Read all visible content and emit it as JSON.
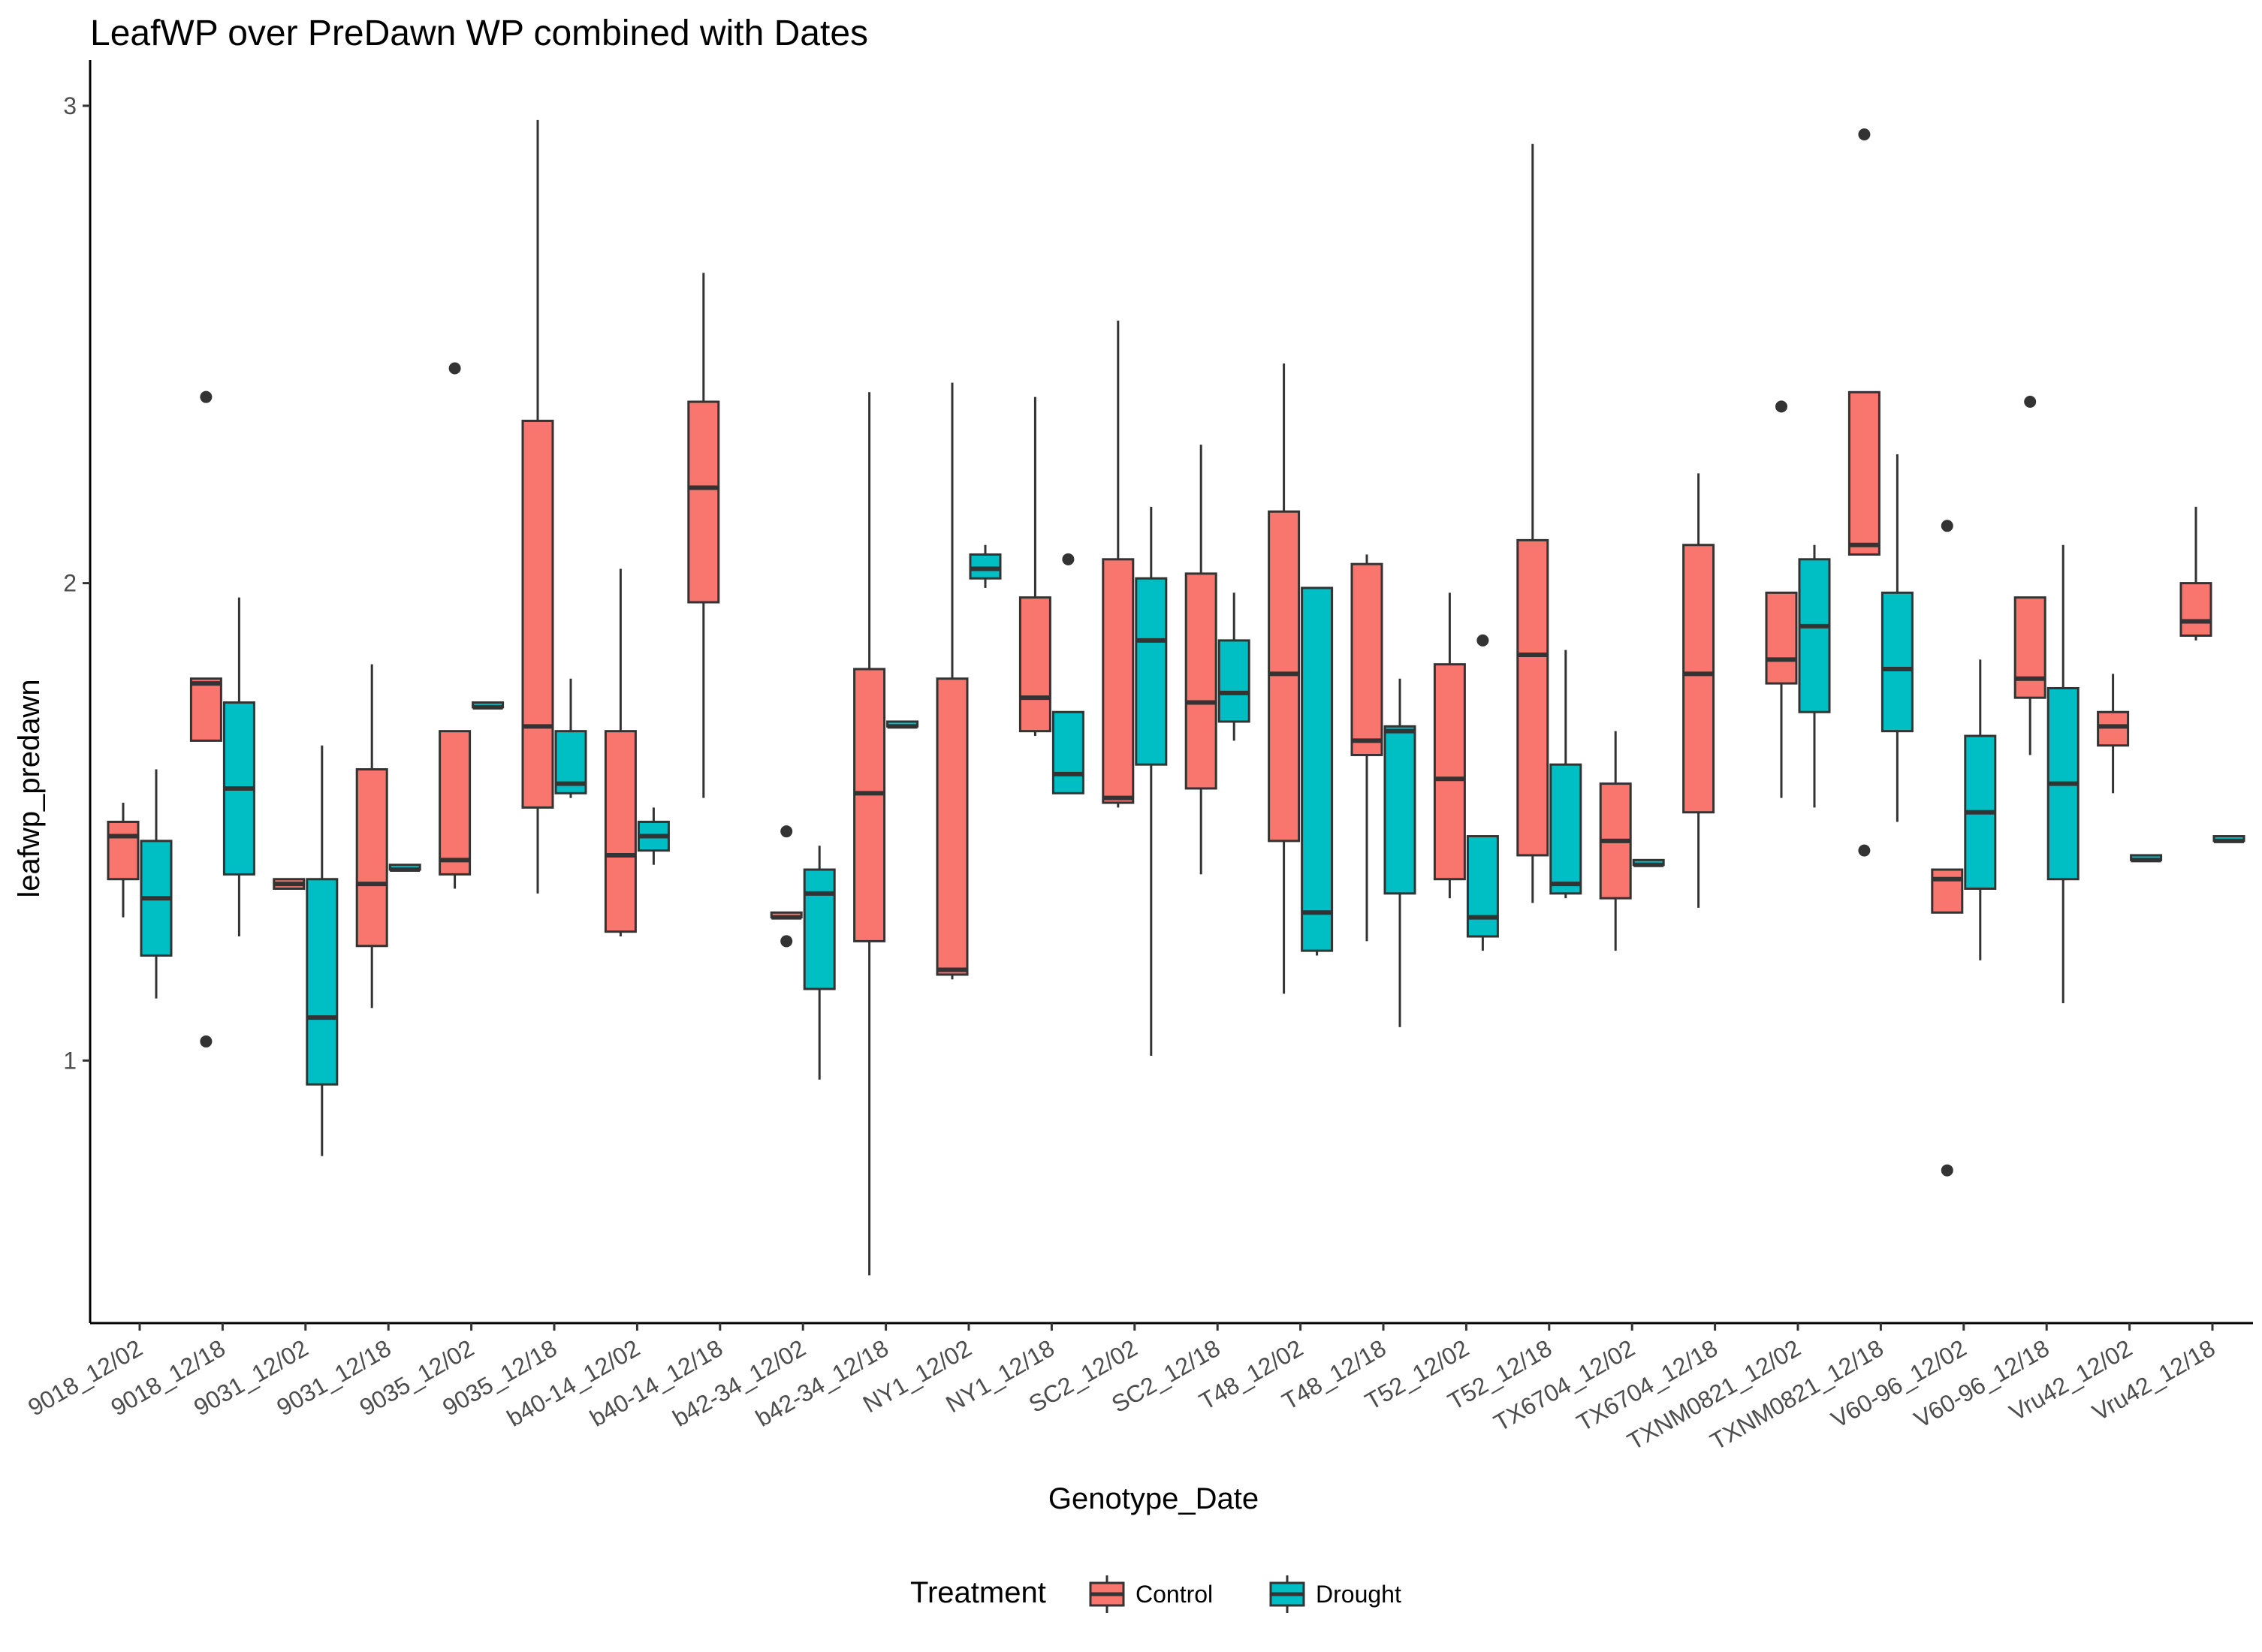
{
  "chart_data": {
    "type": "box",
    "title": "LeafWP over PreDawn WP combined with Dates",
    "xlabel": "Genotype_Date",
    "ylabel": "leafwp_predawn",
    "ylim": [
      0.45,
      3.08
    ],
    "yticks": [
      "1",
      "2",
      "3"
    ],
    "grid": false,
    "legend": {
      "title": "Treatment",
      "placement": "bottom",
      "entries": [
        {
          "name": "Control",
          "color": "#F8766D"
        },
        {
          "name": "Drought",
          "color": "#00BFC4"
        }
      ]
    },
    "categories": [
      "9018_12/02",
      "9018_12/18",
      "9031_12/02",
      "9031_12/18",
      "9035_12/02",
      "9035_12/18",
      "b40-14_12/02",
      "b40-14_12/18",
      "b42-34_12/02",
      "b42-34_12/18",
      "NY1_12/02",
      "NY1_12/18",
      "SC2_12/02",
      "SC2_12/18",
      "T48_12/02",
      "T48_12/18",
      "T52_12/02",
      "T52_12/18",
      "TX6704_12/02",
      "TX6704_12/18",
      "TXNM0821_12/02",
      "TXNM0821_12/18",
      "V60-96_12/02",
      "V60-96_12/18",
      "Vru42_12/02",
      "Vru42_12/18"
    ],
    "series": [
      {
        "name": "Control",
        "color": "#F8766D",
        "boxes": [
          {
            "category": 0,
            "min": 1.3,
            "q1": 1.38,
            "median": 1.47,
            "q3": 1.5,
            "max": 1.54,
            "outliers": []
          },
          {
            "category": 1,
            "min": 1.67,
            "q1": 1.67,
            "median": 1.79,
            "q3": 1.8,
            "max": 1.8,
            "outliers": [
              2.39,
              1.04
            ]
          },
          {
            "category": 2,
            "min": 1.36,
            "q1": 1.36,
            "median": 1.37,
            "q3": 1.38,
            "max": 1.38,
            "outliers": []
          },
          {
            "category": 3,
            "min": 1.11,
            "q1": 1.24,
            "median": 1.37,
            "q3": 1.61,
            "max": 1.83,
            "outliers": []
          },
          {
            "category": 4,
            "min": 1.36,
            "q1": 1.39,
            "median": 1.42,
            "q3": 1.69,
            "max": 1.69,
            "outliers": [
              2.45
            ]
          },
          {
            "category": 5,
            "min": 1.35,
            "q1": 1.53,
            "median": 1.7,
            "q3": 2.34,
            "max": 2.97,
            "outliers": []
          },
          {
            "category": 6,
            "min": 1.26,
            "q1": 1.27,
            "median": 1.43,
            "q3": 1.69,
            "max": 2.03,
            "outliers": []
          },
          {
            "category": 7,
            "min": 1.55,
            "q1": 1.96,
            "median": 2.2,
            "q3": 2.38,
            "max": 2.65,
            "outliers": []
          },
          {
            "category": 8,
            "min": 1.3,
            "q1": 1.3,
            "median": 1.3,
            "q3": 1.31,
            "max": 1.31,
            "outliers": [
              1.48,
              1.25
            ]
          },
          {
            "category": 9,
            "min": 0.55,
            "q1": 1.25,
            "median": 1.56,
            "q3": 1.82,
            "max": 2.4,
            "outliers": []
          },
          {
            "category": 10,
            "min": 1.17,
            "q1": 1.18,
            "median": 1.19,
            "q3": 1.8,
            "max": 2.42,
            "outliers": []
          },
          {
            "category": 11,
            "min": 1.68,
            "q1": 1.69,
            "median": 1.76,
            "q3": 1.97,
            "max": 2.39,
            "outliers": []
          },
          {
            "category": 12,
            "min": 1.53,
            "q1": 1.54,
            "median": 1.55,
            "q3": 2.05,
            "max": 2.55,
            "outliers": []
          },
          {
            "category": 13,
            "min": 1.39,
            "q1": 1.57,
            "median": 1.75,
            "q3": 2.02,
            "max": 2.29,
            "outliers": []
          },
          {
            "category": 14,
            "min": 1.14,
            "q1": 1.46,
            "median": 1.81,
            "q3": 2.15,
            "max": 2.46,
            "outliers": []
          },
          {
            "category": 15,
            "min": 1.25,
            "q1": 1.64,
            "median": 1.67,
            "q3": 2.04,
            "max": 2.06,
            "outliers": []
          },
          {
            "category": 16,
            "min": 1.34,
            "q1": 1.38,
            "median": 1.59,
            "q3": 1.83,
            "max": 1.98,
            "outliers": []
          },
          {
            "category": 17,
            "min": 1.33,
            "q1": 1.43,
            "median": 1.85,
            "q3": 2.09,
            "max": 2.92,
            "outliers": []
          },
          {
            "category": 18,
            "min": 1.23,
            "q1": 1.34,
            "median": 1.46,
            "q3": 1.58,
            "max": 1.69,
            "outliers": []
          },
          {
            "category": 19,
            "min": 1.32,
            "q1": 1.52,
            "median": 1.81,
            "q3": 2.08,
            "max": 2.23,
            "outliers": []
          },
          {
            "category": 20,
            "min": 1.55,
            "q1": 1.79,
            "median": 1.84,
            "q3": 1.98,
            "max": 1.98,
            "outliers": [
              2.37
            ]
          },
          {
            "category": 21,
            "min": 2.06,
            "q1": 2.06,
            "median": 2.08,
            "q3": 2.4,
            "max": 2.4,
            "outliers": [
              2.94,
              1.44
            ]
          },
          {
            "category": 22,
            "min": 1.31,
            "q1": 1.31,
            "median": 1.38,
            "q3": 1.4,
            "max": 1.4,
            "outliers": [
              2.12,
              0.77
            ]
          },
          {
            "category": 23,
            "min": 1.64,
            "q1": 1.76,
            "median": 1.8,
            "q3": 1.97,
            "max": 1.97,
            "outliers": [
              2.38
            ]
          },
          {
            "category": 24,
            "min": 1.56,
            "q1": 1.66,
            "median": 1.7,
            "q3": 1.73,
            "max": 1.81,
            "outliers": []
          },
          {
            "category": 25,
            "min": 1.88,
            "q1": 1.89,
            "median": 1.92,
            "q3": 2.0,
            "max": 2.16,
            "outliers": []
          }
        ]
      },
      {
        "name": "Drought",
        "color": "#00BFC4",
        "boxes": [
          {
            "category": 0,
            "min": 1.13,
            "q1": 1.22,
            "median": 1.34,
            "q3": 1.46,
            "max": 1.61,
            "outliers": []
          },
          {
            "category": 1,
            "min": 1.26,
            "q1": 1.39,
            "median": 1.57,
            "q3": 1.75,
            "max": 1.97,
            "outliers": []
          },
          {
            "category": 2,
            "min": 0.8,
            "q1": 0.95,
            "median": 1.09,
            "q3": 1.38,
            "max": 1.66,
            "outliers": []
          },
          {
            "category": 3,
            "min": 1.4,
            "q1": 1.4,
            "median": 1.4,
            "q3": 1.41,
            "max": 1.41,
            "outliers": []
          },
          {
            "category": 4,
            "min": 1.74,
            "q1": 1.74,
            "median": 1.74,
            "q3": 1.75,
            "max": 1.75,
            "outliers": []
          },
          {
            "category": 5,
            "min": 1.55,
            "q1": 1.56,
            "median": 1.58,
            "q3": 1.69,
            "max": 1.8,
            "outliers": []
          },
          {
            "category": 6,
            "min": 1.41,
            "q1": 1.44,
            "median": 1.47,
            "q3": 1.5,
            "max": 1.53,
            "outliers": []
          },
          {
            "category": 8,
            "min": 0.96,
            "q1": 1.15,
            "median": 1.35,
            "q3": 1.4,
            "max": 1.45,
            "outliers": []
          },
          {
            "category": 9,
            "min": 1.7,
            "q1": 1.7,
            "median": 1.7,
            "q3": 1.71,
            "max": 1.71,
            "outliers": []
          },
          {
            "category": 10,
            "min": 1.99,
            "q1": 2.01,
            "median": 2.03,
            "q3": 2.06,
            "max": 2.08,
            "outliers": []
          },
          {
            "category": 11,
            "min": 1.56,
            "q1": 1.56,
            "median": 1.6,
            "q3": 1.73,
            "max": 1.73,
            "outliers": [
              2.05
            ]
          },
          {
            "category": 12,
            "min": 1.01,
            "q1": 1.62,
            "median": 1.88,
            "q3": 2.01,
            "max": 2.16,
            "outliers": []
          },
          {
            "category": 13,
            "min": 1.67,
            "q1": 1.71,
            "median": 1.77,
            "q3": 1.88,
            "max": 1.98,
            "outliers": []
          },
          {
            "category": 14,
            "min": 1.22,
            "q1": 1.23,
            "median": 1.31,
            "q3": 1.99,
            "max": 1.99,
            "outliers": []
          },
          {
            "category": 15,
            "min": 1.07,
            "q1": 1.35,
            "median": 1.69,
            "q3": 1.7,
            "max": 1.8,
            "outliers": []
          },
          {
            "category": 16,
            "min": 1.23,
            "q1": 1.26,
            "median": 1.3,
            "q3": 1.47,
            "max": 1.47,
            "outliers": [
              1.88
            ]
          },
          {
            "category": 17,
            "min": 1.34,
            "q1": 1.35,
            "median": 1.37,
            "q3": 1.62,
            "max": 1.86,
            "outliers": []
          },
          {
            "category": 18,
            "min": 1.41,
            "q1": 1.41,
            "median": 1.41,
            "q3": 1.42,
            "max": 1.42,
            "outliers": []
          },
          {
            "category": 20,
            "min": 1.53,
            "q1": 1.73,
            "median": 1.91,
            "q3": 2.05,
            "max": 2.08,
            "outliers": []
          },
          {
            "category": 21,
            "min": 1.5,
            "q1": 1.69,
            "median": 1.82,
            "q3": 1.98,
            "max": 2.27,
            "outliers": []
          },
          {
            "category": 22,
            "min": 1.21,
            "q1": 1.36,
            "median": 1.52,
            "q3": 1.68,
            "max": 1.84,
            "outliers": []
          },
          {
            "category": 23,
            "min": 1.12,
            "q1": 1.38,
            "median": 1.58,
            "q3": 1.78,
            "max": 2.08,
            "outliers": []
          },
          {
            "category": 24,
            "min": 1.42,
            "q1": 1.42,
            "median": 1.42,
            "q3": 1.43,
            "max": 1.43,
            "outliers": []
          },
          {
            "category": 25,
            "min": 1.46,
            "q1": 1.46,
            "median": 1.46,
            "q3": 1.47,
            "max": 1.47,
            "outliers": []
          }
        ]
      }
    ]
  }
}
